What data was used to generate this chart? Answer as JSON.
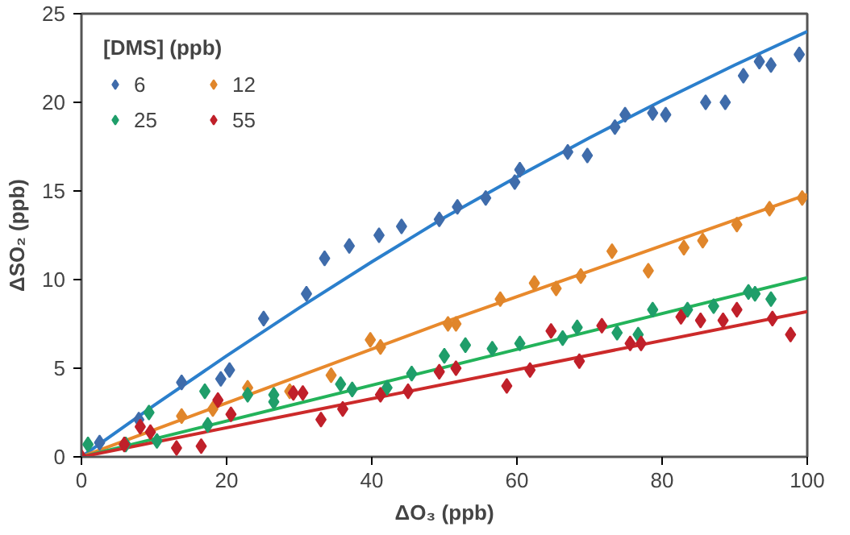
{
  "chart_data": {
    "type": "scatter",
    "xlabel": "ΔO₃ (ppb)",
    "ylabel": "ΔSO₂ (ppb)",
    "legend_title": "[DMS] (ppb)",
    "legend": "top left",
    "grid": false,
    "xlim": [
      0,
      100
    ],
    "ylim": [
      0,
      25
    ],
    "xticks": [
      0,
      20,
      40,
      60,
      80,
      100
    ],
    "yticks": [
      0,
      5,
      10,
      15,
      20,
      25
    ],
    "series": [
      {
        "name": "6",
        "color": "#3f6cab",
        "marker": "diamond",
        "x": [
          2.5,
          7.9,
          13.8,
          19.2,
          20.4,
          25.1,
          31,
          33.5,
          36.9,
          41,
          44.1,
          49.3,
          51.8,
          55.7,
          59.7,
          60.4,
          67,
          69.7,
          73.5,
          74.9,
          78.7,
          80.5,
          86,
          88.7,
          91.2,
          93.4,
          95,
          98.9
        ],
        "values": [
          0.8,
          2.1,
          4.2,
          4.4,
          4.9,
          7.8,
          9.2,
          11.2,
          11.9,
          12.5,
          13,
          13.4,
          14.1,
          14.6,
          15.5,
          16.2,
          17.2,
          17,
          18.6,
          19.3,
          19.4,
          19.3,
          20,
          20,
          21.5,
          22.3,
          22.1,
          22.7
        ]
      },
      {
        "name": "12",
        "color": "#e0862b",
        "marker": "diamond",
        "x": [
          13.8,
          18.1,
          22.9,
          28.7,
          34.4,
          39.8,
          41.2,
          50.5,
          51.6,
          57.7,
          62.4,
          65.4,
          68.8,
          73.1,
          78.1,
          83,
          85.6,
          90.3,
          94.8,
          99.3
        ],
        "values": [
          2.3,
          2.7,
          3.9,
          3.7,
          4.6,
          6.6,
          6.2,
          7.5,
          7.5,
          8.9,
          9.8,
          9.5,
          10.2,
          11.6,
          10.5,
          11.8,
          12.2,
          13.1,
          14,
          14.6
        ]
      },
      {
        "name": "25",
        "color": "#1f9e6a",
        "marker": "diamond",
        "x": [
          0.9,
          6.1,
          9.3,
          10.4,
          17,
          17.4,
          22.9,
          26.5,
          26.5,
          35.7,
          37.3,
          42.1,
          45.5,
          50,
          52.9,
          56.6,
          60.4,
          66.3,
          68.3,
          73.8,
          76.7,
          78.7,
          83.5,
          87.1,
          91.9,
          92.8,
          95
        ],
        "values": [
          0.7,
          0.7,
          2.5,
          0.9,
          3.7,
          1.8,
          3.5,
          3.5,
          3.1,
          4.1,
          3.8,
          3.9,
          4.7,
          5.7,
          6.3,
          6.1,
          6.4,
          6.7,
          7.3,
          7,
          6.9,
          8.3,
          8.3,
          8.5,
          9.3,
          9.2,
          8.9
        ]
      },
      {
        "name": "55",
        "color": "#c0202a",
        "marker": "diamond",
        "x": [
          0,
          5.9,
          8.1,
          9.5,
          13.1,
          16.5,
          18.8,
          20.6,
          29.2,
          30.5,
          33,
          36,
          41.2,
          45,
          49.3,
          51.6,
          58.6,
          61.8,
          64.7,
          68.6,
          71.7,
          75.6,
          77.1,
          82.6,
          85.3,
          88.4,
          90.3,
          95.2,
          97.7
        ],
        "values": [
          0,
          0.7,
          1.7,
          1.4,
          0.5,
          0.6,
          3.2,
          2.4,
          3.6,
          3.6,
          2.1,
          2.7,
          3.5,
          3.7,
          4.8,
          5,
          4,
          4.9,
          7.1,
          5.4,
          7.4,
          6.4,
          6.4,
          7.9,
          7.7,
          7.7,
          8.3,
          7.8,
          6.9
        ]
      },
      {
        "type": "line",
        "color": "#2b7fcc",
        "x": [
          0,
          10,
          20,
          30,
          40,
          50,
          60,
          70,
          80,
          90,
          100
        ],
        "values": [
          0,
          2.9,
          5.7,
          8.4,
          11,
          13.5,
          15.8,
          18,
          20.1,
          22.1,
          24
        ]
      },
      {
        "type": "line",
        "color": "#e8892c",
        "x": [
          0,
          50,
          100
        ],
        "values": [
          0,
          7.6,
          14.8
        ]
      },
      {
        "type": "line",
        "color": "#23b35a",
        "x": [
          0,
          100
        ],
        "values": [
          0,
          10.1
        ]
      },
      {
        "type": "line",
        "color": "#cc2a2a",
        "x": [
          0,
          100
        ],
        "values": [
          0,
          8.2
        ]
      }
    ]
  }
}
